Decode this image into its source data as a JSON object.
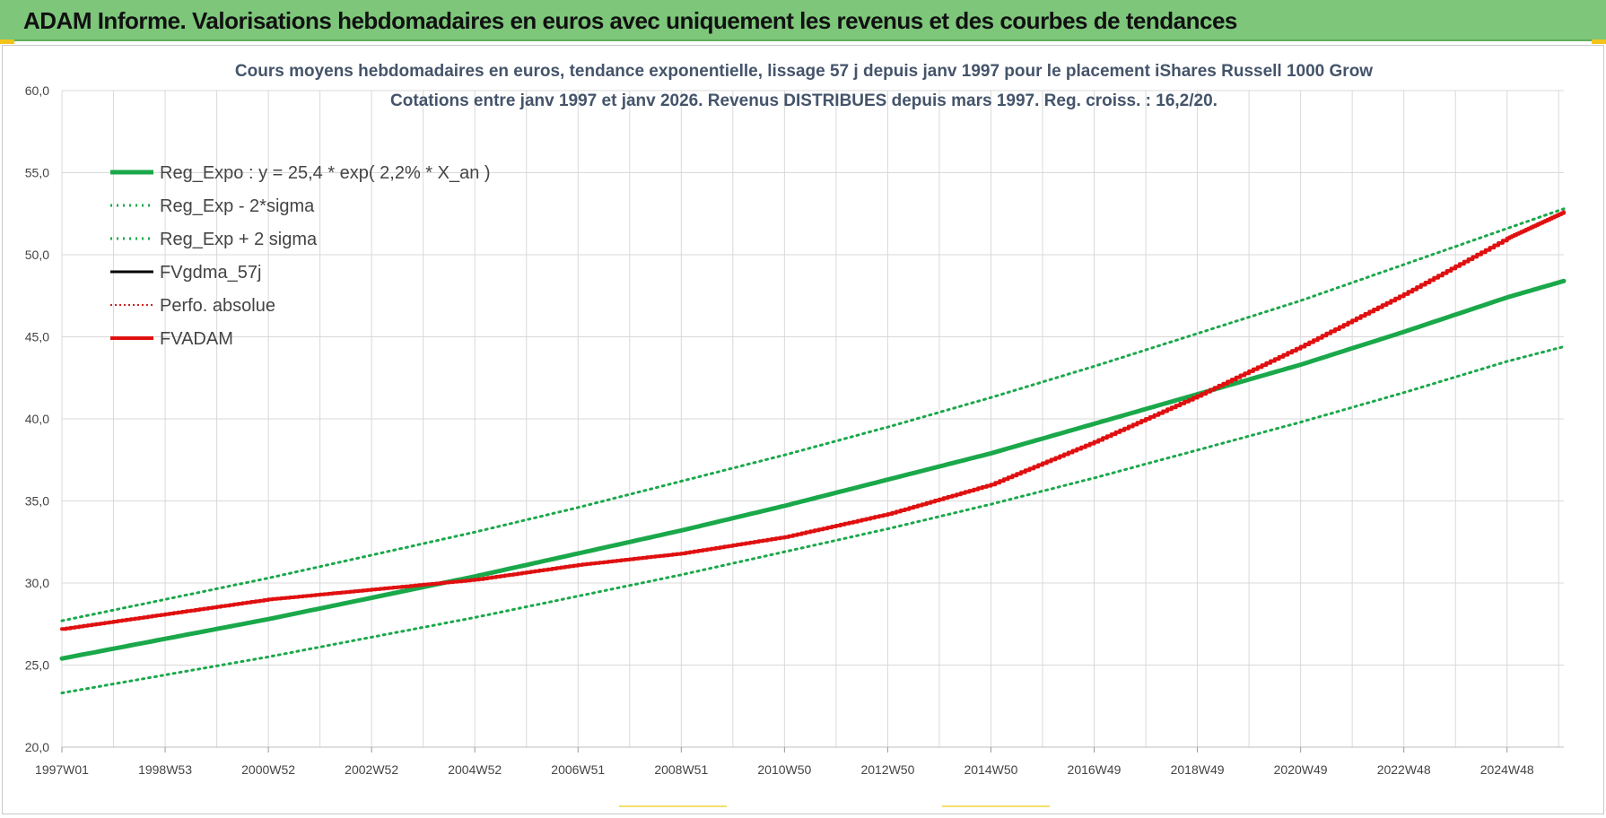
{
  "banner": {
    "title": "ADAM Informe. Valorisations hebdomadaires en euros avec uniquement les revenus et des courbes de tendances"
  },
  "colors": {
    "banner_bg": "#7dc67a",
    "trend_green": "#1aa84a",
    "band_green": "#1aa84a",
    "fvadam_red": "#e01010",
    "perfo_red": "#cc2222",
    "fvgdma_black": "#000000",
    "grid": "#d9d9d9",
    "title_text": "#44546a"
  },
  "chart_data": {
    "type": "line",
    "title": "Cours moyens hebdomadaires en euros, tendance exponentielle, lissage 57 j depuis janv 1997 pour le placement iShares Russell 1000 Grow",
    "subtitle": "Cotations entre janv 1997 et janv 2026. Revenus DISTRIBUES depuis mars 1997. Reg. croiss. : 16,2/20.",
    "xlabel": "",
    "ylabel": "",
    "x_range": [
      1997.0,
      2026.1
    ],
    "ylim": [
      20,
      60
    ],
    "y_ticks": [
      "20,0",
      "25,0",
      "30,0",
      "35,0",
      "40,0",
      "45,0",
      "50,0",
      "55,0",
      "60,0"
    ],
    "x_tick_labels": [
      "1997W01",
      "1998W53",
      "2000W52",
      "2002W52",
      "2004W52",
      "2006W51",
      "2008W51",
      "2010W50",
      "2012W50",
      "2014W50",
      "2016W49",
      "2018W49",
      "2020W49",
      "2022W48",
      "2024W48"
    ],
    "x_tick_years": [
      1997.0,
      1999.0,
      2001.0,
      2003.0,
      2005.0,
      2007.0,
      2009.0,
      2011.0,
      2013.0,
      2015.0,
      2017.0,
      2019.0,
      2021.0,
      2023.0,
      2025.0
    ],
    "grid": true,
    "legend_position": "top-left",
    "legend": [
      {
        "key": "reg_expo",
        "label": "Reg_Expo : y = 25,4 * exp( 2,2% *  X_an )",
        "style": "thick-solid",
        "color": "#1aa84a"
      },
      {
        "key": "reg_minus",
        "label": "Reg_Exp - 2*sigma",
        "style": "dotted",
        "color": "#1aa84a"
      },
      {
        "key": "reg_plus",
        "label": "Reg_Exp + 2 sigma",
        "style": "dotted",
        "color": "#1aa84a"
      },
      {
        "key": "fvgdma",
        "label": "FVgdma_57j",
        "style": "solid",
        "color": "#000000"
      },
      {
        "key": "perfo",
        "label": "Perfo. absolue",
        "style": "dotted-thin",
        "color": "#cc2222"
      },
      {
        "key": "fvadam",
        "label": "FVADAM",
        "style": "thick-solid",
        "color": "#e01010"
      }
    ],
    "series": [
      {
        "name": "Reg_Expo : y = 25,4 * exp( 2,2% *  X_an )",
        "x": [
          1997,
          1999,
          2001,
          2003,
          2005,
          2007,
          2009,
          2011,
          2013,
          2015,
          2017,
          2019,
          2021,
          2023,
          2025,
          2026.1
        ],
        "values": [
          25.4,
          26.6,
          27.8,
          29.1,
          30.4,
          31.8,
          33.2,
          34.7,
          36.3,
          37.9,
          39.7,
          41.5,
          43.3,
          45.3,
          47.4,
          48.4
        ]
      },
      {
        "name": "Reg_Exp - 2*sigma",
        "x": [
          1997,
          1999,
          2001,
          2003,
          2005,
          2007,
          2009,
          2011,
          2013,
          2015,
          2017,
          2019,
          2021,
          2023,
          2025,
          2026.1
        ],
        "values": [
          23.3,
          24.4,
          25.5,
          26.7,
          27.9,
          29.2,
          30.5,
          31.9,
          33.3,
          34.8,
          36.4,
          38.1,
          39.8,
          41.6,
          43.5,
          44.4
        ]
      },
      {
        "name": "Reg_Exp + 2 sigma",
        "x": [
          1997,
          1999,
          2001,
          2003,
          2005,
          2007,
          2009,
          2011,
          2013,
          2015,
          2017,
          2019,
          2021,
          2023,
          2025,
          2026.1
        ],
        "values": [
          27.7,
          29.0,
          30.3,
          31.7,
          33.1,
          34.6,
          36.2,
          37.8,
          39.5,
          41.3,
          43.2,
          45.2,
          47.2,
          49.4,
          51.6,
          52.8
        ]
      },
      {
        "name": "FVADAM",
        "x": [
          1997,
          1999,
          2001,
          2003,
          2005,
          2007,
          2009,
          2011,
          2013,
          2015,
          2017,
          2019,
          2021,
          2023,
          2025,
          2026.1
        ],
        "values": [
          27.2,
          28.1,
          29.0,
          29.6,
          30.2,
          31.1,
          31.8,
          32.8,
          34.2,
          36.0,
          38.6,
          41.4,
          44.4,
          47.6,
          51.0,
          52.6
        ]
      }
    ]
  }
}
